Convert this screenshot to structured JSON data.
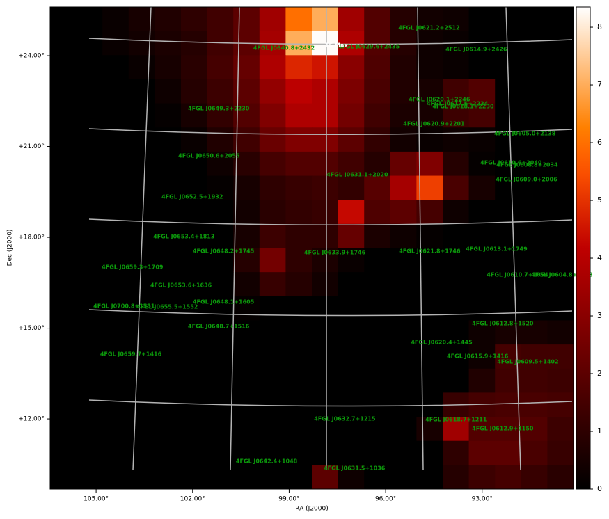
{
  "chart_data": {
    "type": "heatmap",
    "xlabel": "RA (J2000)",
    "ylabel": "Dec (J2000)",
    "xlim": [
      106.43,
      90.16
    ],
    "ylim": [
      9.68,
      25.61
    ],
    "xticks": [
      {
        "value": 105,
        "label": "105.00°"
      },
      {
        "value": 102,
        "label": "102.00°"
      },
      {
        "value": 99,
        "label": "99.00°"
      },
      {
        "value": 96,
        "label": "96.00°"
      },
      {
        "value": 93,
        "label": "93.00°"
      }
    ],
    "yticks": [
      {
        "value": 24,
        "label": "+24.00°"
      },
      {
        "value": 21,
        "label": "+21.00°"
      },
      {
        "value": 18,
        "label": "+18.00°"
      },
      {
        "value": 15,
        "label": "+15.00°"
      },
      {
        "value": 12,
        "label": "+12.00°"
      }
    ],
    "colormap": "gist_heat",
    "colorbar_lim": [
      0,
      8.35
    ],
    "colorbar_ticks": [
      0,
      1,
      2,
      3,
      4,
      5,
      6,
      7,
      8
    ],
    "z": [
      [
        0,
        0,
        0.2,
        0.5,
        0.7,
        1.0,
        1.4,
        2.0,
        3.5,
        6.0,
        7.0,
        3.5,
        1.8,
        0.8,
        0.4,
        0.3,
        0,
        0,
        0,
        0
      ],
      [
        0,
        0,
        0.2,
        0.4,
        0.6,
        0.8,
        1.4,
        2.0,
        3.6,
        7.0,
        8.3,
        3.8,
        1.8,
        0.8,
        0.3,
        0.2,
        0,
        0,
        0,
        0
      ],
      [
        0,
        0,
        0,
        0.2,
        0.5,
        0.9,
        1.5,
        2.2,
        3.8,
        4.8,
        4.5,
        3.0,
        1.7,
        0.7,
        0.3,
        0.2,
        0,
        0,
        0,
        0
      ],
      [
        0,
        0,
        0,
        0,
        0.3,
        0.8,
        1.3,
        2.0,
        3.2,
        4.1,
        3.8,
        2.7,
        1.6,
        0.7,
        0.5,
        1.4,
        1.8,
        0,
        0,
        0
      ],
      [
        0,
        0,
        0,
        0,
        0.1,
        0.5,
        1.1,
        1.8,
        2.8,
        3.8,
        3.8,
        2.5,
        1.4,
        0.6,
        0.5,
        1.3,
        1.5,
        0,
        0,
        0
      ],
      [
        0,
        0,
        0,
        0,
        0,
        0.2,
        0.7,
        1.4,
        2.3,
        2.8,
        2.8,
        2.0,
        1.1,
        0.4,
        0.2,
        0.3,
        0.2,
        0,
        0,
        0
      ],
      [
        0,
        0,
        0,
        0,
        0,
        0,
        0.3,
        0.9,
        1.5,
        1.8,
        1.8,
        1.4,
        0.8,
        2.2,
        2.8,
        0.8,
        0.1,
        0,
        0,
        0
      ],
      [
        0,
        0,
        0,
        0,
        0,
        0,
        0.1,
        0.5,
        1.0,
        1.2,
        1.3,
        1.1,
        1.9,
        3.6,
        5.2,
        1.6,
        0.5,
        0,
        0,
        0
      ],
      [
        0,
        0,
        0,
        0,
        0,
        0,
        0,
        0.4,
        0.9,
        1.1,
        1.2,
        4.3,
        1.7,
        2.0,
        1.5,
        0.3,
        0,
        0,
        0,
        0
      ],
      [
        0,
        0,
        0,
        0,
        0,
        0,
        0,
        0.5,
        1.3,
        1.0,
        1.0,
        2.2,
        0.6,
        0.3,
        0.1,
        0,
        0,
        0,
        0,
        0
      ],
      [
        0,
        0,
        0,
        0,
        0,
        0,
        0,
        0.8,
        2.5,
        1.0,
        0.6,
        0.2,
        0,
        0,
        0,
        0,
        0,
        0,
        0,
        0
      ],
      [
        0,
        0,
        0,
        0,
        0,
        0,
        0,
        0.4,
        1.2,
        0.8,
        0.4,
        0,
        0,
        0,
        0,
        0,
        0,
        0,
        0,
        0
      ],
      [
        0,
        0,
        0,
        0,
        0,
        0,
        0,
        0.1,
        0,
        0,
        0,
        0,
        0,
        0,
        0,
        0,
        0,
        0,
        0,
        0
      ],
      [
        0,
        0,
        0,
        0,
        0,
        0,
        0,
        0,
        0,
        0,
        0,
        0,
        0,
        0,
        0,
        0,
        0.3,
        0.5,
        0.5,
        0.4
      ],
      [
        0,
        0,
        0,
        0,
        0,
        0,
        0,
        0,
        0,
        0,
        0,
        0,
        0,
        0,
        0,
        0,
        0.3,
        1.5,
        1.4,
        1.4
      ],
      [
        0,
        0,
        0,
        0,
        0,
        0,
        0,
        0,
        0,
        0,
        0,
        0,
        0,
        0,
        0,
        0,
        0.7,
        1.4,
        1.4,
        1.3
      ],
      [
        0,
        0,
        0,
        0,
        0,
        0,
        0,
        0,
        0,
        0,
        0,
        0,
        0,
        0,
        0,
        1.2,
        1.5,
        1.6,
        1.6,
        1.5
      ],
      [
        0,
        0,
        0,
        0,
        0,
        0,
        0,
        0,
        0,
        0,
        0,
        0,
        0,
        0,
        0.5,
        3.5,
        1.8,
        1.8,
        1.8,
        1.3
      ],
      [
        0,
        0,
        0,
        0,
        0,
        0,
        0,
        0,
        0,
        0,
        0,
        0,
        0,
        0,
        0,
        1.0,
        2.0,
        2.0,
        1.6,
        1.2
      ],
      [
        0,
        0,
        0,
        0,
        0,
        0,
        0,
        0,
        0,
        0,
        2.0,
        0.3,
        0,
        0,
        0,
        0.8,
        1.3,
        1.5,
        1.2,
        0.9
      ]
    ],
    "label_color": "#0c9a0c",
    "annotation_color": "#ffffff",
    "annotations": [
      {
        "text": "TS Max",
        "ra": 97.53,
        "dec": 24.34
      }
    ],
    "sources": [
      {
        "name": "4FGL J0621.2+2512",
        "ra": 94.65,
        "dec": 24.92
      },
      {
        "name": "4FGL J0640.8+2432",
        "ra": 99.16,
        "dec": 24.25
      },
      {
        "name": "4FGL J0629.6+2435",
        "ra": 96.52,
        "dec": 24.3
      },
      {
        "name": "4FGL J0614.9+2426",
        "ra": 93.18,
        "dec": 24.21
      },
      {
        "name": "4FGL J0649.3+2230",
        "ra": 101.19,
        "dec": 22.25
      },
      {
        "name": "4FGL J0620.1+2246",
        "ra": 94.33,
        "dec": 22.55
      },
      {
        "name": "4FGL J0617.6+2234",
        "ra": 93.77,
        "dec": 22.41
      },
      {
        "name": "4FGL J0618.1+2230",
        "ra": 93.59,
        "dec": 22.32
      },
      {
        "name": "4FGL J0620.9+2201",
        "ra": 94.5,
        "dec": 21.75
      },
      {
        "name": "4FGL J0605.0+2138",
        "ra": 91.67,
        "dec": 21.43
      },
      {
        "name": "4FGL J0650.6+2055",
        "ra": 101.49,
        "dec": 20.69
      },
      {
        "name": "4FGL J0631.1+2020",
        "ra": 96.88,
        "dec": 20.07
      },
      {
        "name": "4FGL J0610.6+2040",
        "ra": 92.1,
        "dec": 20.46
      },
      {
        "name": "4FGL J0608.8+2034",
        "ra": 91.6,
        "dec": 20.39
      },
      {
        "name": "4FGL J0609.0+2006",
        "ra": 91.62,
        "dec": 19.91
      },
      {
        "name": "4FGL J0652.5+1932",
        "ra": 102.01,
        "dec": 19.33
      },
      {
        "name": "4FGL J0653.4+1813",
        "ra": 102.27,
        "dec": 18.02
      },
      {
        "name": "4FGL J0648.2+1745",
        "ra": 101.04,
        "dec": 17.54
      },
      {
        "name": "4FGL J0633.9+1746",
        "ra": 97.58,
        "dec": 17.49
      },
      {
        "name": "4FGL J0621.8+1746",
        "ra": 94.63,
        "dec": 17.54
      },
      {
        "name": "4FGL J0613.1+1749",
        "ra": 92.55,
        "dec": 17.61
      },
      {
        "name": "4FGL J0659.3+1709",
        "ra": 103.87,
        "dec": 17.01
      },
      {
        "name": "4FGL J0610.7+1654",
        "ra": 91.9,
        "dec": 16.76
      },
      {
        "name": "4FGL J0604.8+1658",
        "ra": 90.52,
        "dec": 16.76
      },
      {
        "name": "4FGL J0653.6+1636",
        "ra": 102.36,
        "dec": 16.41
      },
      {
        "name": "4FGL J0648.1+1605",
        "ra": 101.04,
        "dec": 15.86
      },
      {
        "name": "4FGL J0700.8+1551",
        "ra": 104.13,
        "dec": 15.72
      },
      {
        "name": "4FGL J0655.5+1552",
        "ra": 102.79,
        "dec": 15.7
      },
      {
        "name": "4FGL J0648.7+1516",
        "ra": 101.19,
        "dec": 15.06
      },
      {
        "name": "4FGL J0612.8+1520",
        "ra": 92.36,
        "dec": 15.15
      },
      {
        "name": "4FGL J0620.4+1445",
        "ra": 94.26,
        "dec": 14.53
      },
      {
        "name": "4FGL J0659.7+1416",
        "ra": 103.92,
        "dec": 14.14
      },
      {
        "name": "4FGL J0615.9+1416",
        "ra": 93.14,
        "dec": 14.07
      },
      {
        "name": "4FGL J0609.5+1402",
        "ra": 91.58,
        "dec": 13.89
      },
      {
        "name": "4FGL J0632.7+1215",
        "ra": 97.27,
        "dec": 12.0
      },
      {
        "name": "4FGL J0618.7+1211",
        "ra": 93.81,
        "dec": 11.98
      },
      {
        "name": "4FGL J0612.9+1150",
        "ra": 92.36,
        "dec": 11.68
      },
      {
        "name": "4FGL J0642.4+1048",
        "ra": 99.7,
        "dec": 10.6
      },
      {
        "name": "4FGL J0631.5+1036",
        "ra": 96.97,
        "dec": 10.37
      }
    ]
  }
}
